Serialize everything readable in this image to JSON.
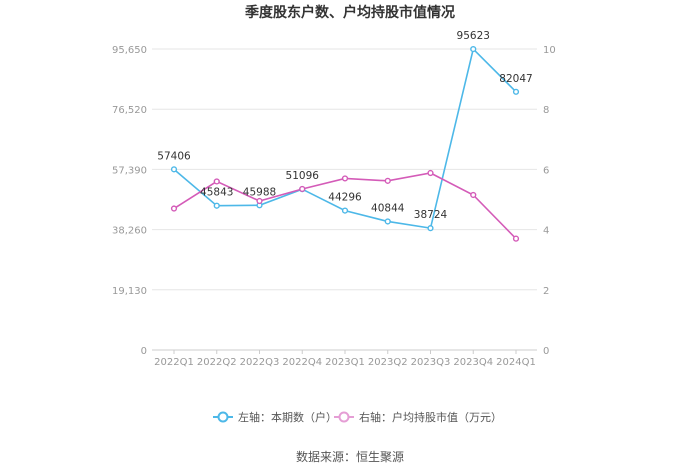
{
  "chart_data": {
    "type": "line",
    "title": "季度股东户数、户均持股市值情况",
    "categories": [
      "2022Q1",
      "2022Q2",
      "2022Q3",
      "2022Q4",
      "2023Q1",
      "2023Q2",
      "2023Q3",
      "2023Q4",
      "2024Q1"
    ],
    "series": [
      {
        "name": "左轴：本期数（户）",
        "axis": "left",
        "color": "#4db8e8",
        "values": [
          57406,
          45843,
          45988,
          51096,
          44296,
          40844,
          38724,
          95623,
          82047
        ],
        "labels": [
          "57406",
          "45843",
          "45988",
          "51096",
          "44296",
          "40844",
          "38724",
          "95623",
          "82047"
        ]
      },
      {
        "name": "右轴：户均持股市值（万元）",
        "axis": "right",
        "color": "#d45bb8",
        "values": [
          4.7,
          5.6,
          4.95,
          5.35,
          5.7,
          5.62,
          5.88,
          5.15,
          3.7
        ]
      }
    ],
    "y_left": {
      "ticks": [
        "0",
        "19,130",
        "38,260",
        "57,390",
        "76,520",
        "95,650"
      ],
      "range": [
        0,
        95650
      ]
    },
    "y_right": {
      "ticks": [
        "0",
        "2",
        "4",
        "6",
        "8",
        "10"
      ],
      "range": [
        0,
        10
      ]
    },
    "legend_position": "bottom",
    "grid": true
  },
  "source": "数据来源：恒生聚源"
}
